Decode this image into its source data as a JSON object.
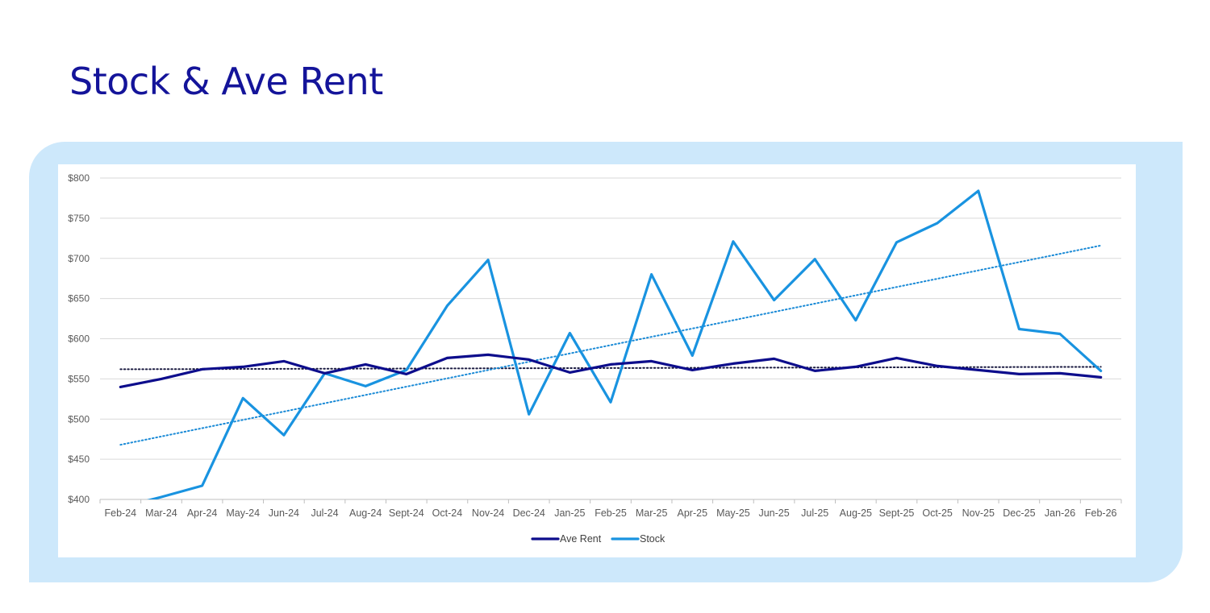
{
  "page": {
    "title": "Stock & Ave Rent"
  },
  "chart_data": {
    "type": "line",
    "title": "",
    "xlabel": "",
    "ylabel": "",
    "categories": [
      "Feb-24",
      "Mar-24",
      "Apr-24",
      "May-24",
      "Jun-24",
      "Jul-24",
      "Aug-24",
      "Sept-24",
      "Oct-24",
      "Nov-24",
      "Dec-24",
      "Jan-25",
      "Feb-25",
      "Mar-25",
      "Apr-25",
      "May-25",
      "Jun-25",
      "Jul-25",
      "Aug-25",
      "Sept-25",
      "Oct-25",
      "Nov-25",
      "Dec-25",
      "Jan-26",
      "Feb-26"
    ],
    "ylim": [
      400,
      800
    ],
    "yticks": [
      400,
      450,
      500,
      550,
      600,
      650,
      700,
      750,
      800
    ],
    "ytick_labels": [
      "$400",
      "$450",
      "$500",
      "$550",
      "$600",
      "$650",
      "$700",
      "$750",
      "$800"
    ],
    "grid": true,
    "legend_position": "bottom-center",
    "series": [
      {
        "name": "Ave Rent",
        "color": "#0d0d8c",
        "values": [
          540,
          550,
          562,
          565,
          572,
          557,
          568,
          556,
          576,
          580,
          574,
          558,
          568,
          572,
          561,
          569,
          575,
          560,
          565,
          576,
          566,
          561,
          556,
          557,
          552
        ],
        "trendline": {
          "style": "dotted",
          "color": "#1a1a40",
          "start": 562,
          "end": 565
        }
      },
      {
        "name": "Stock",
        "color": "#1993e0",
        "values": [
          390,
          403,
          417,
          526,
          480,
          557,
          541,
          561,
          641,
          698,
          506,
          607,
          521,
          680,
          579,
          721,
          648,
          699,
          623,
          720,
          744,
          784,
          612,
          606,
          560
        ],
        "trendline": {
          "style": "dotted",
          "color": "#1a8ad6",
          "start": 468,
          "end": 716
        }
      }
    ]
  }
}
